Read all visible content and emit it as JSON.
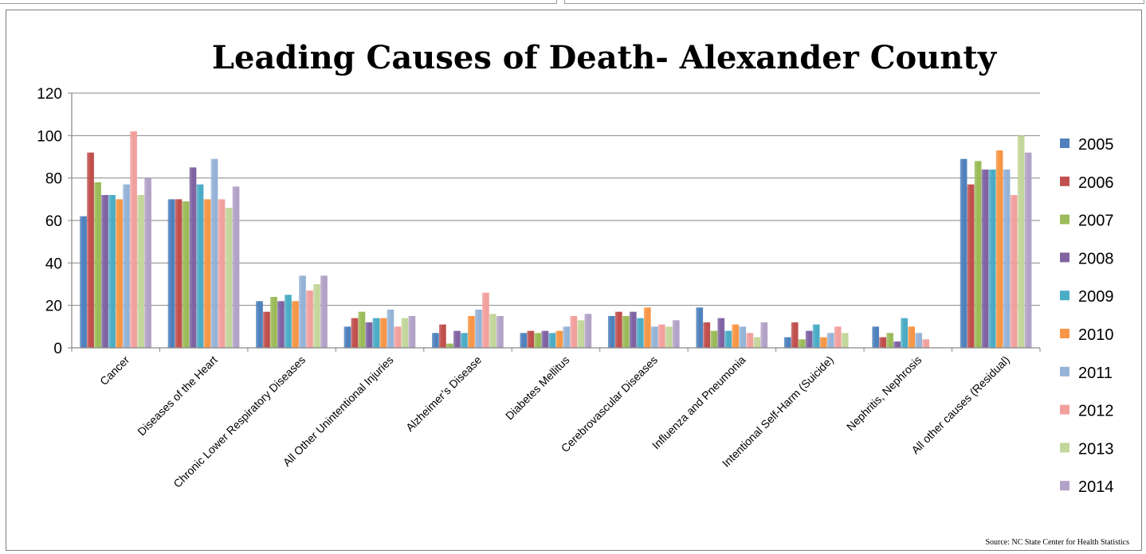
{
  "chart_data": {
    "type": "bar",
    "title": "Leading Causes of Death- Alexander County",
    "xlabel": "",
    "ylabel": "",
    "ylim": [
      0,
      120
    ],
    "yticks": [
      0,
      20,
      40,
      60,
      80,
      100,
      120
    ],
    "grid": true,
    "legend_position": "right",
    "source": "Source: NC State Center for Health Statistics",
    "categories": [
      "Cancer",
      "Diseases of the Heart",
      "Chronic Lower Respiratory Diseases",
      "All Other Unintentional Injuries",
      "Alzheimer’s Disease",
      "Diabetes Mellitus",
      "Cerebrovascular Diseases",
      "Influenza and Pneumonia",
      "Intentional Self-Harm (Suicide)",
      "Nephritis, Nephrosis",
      "All other causes (Residual)"
    ],
    "series": [
      {
        "name": "2005",
        "color": "#4f81bd",
        "values": [
          62,
          70,
          22,
          10,
          7,
          7,
          15,
          19,
          5,
          10,
          89
        ]
      },
      {
        "name": "2006",
        "color": "#c0504d",
        "values": [
          92,
          70,
          17,
          14,
          11,
          8,
          17,
          12,
          12,
          5,
          77
        ]
      },
      {
        "name": "2007",
        "color": "#9bbb59",
        "values": [
          78,
          69,
          24,
          17,
          2,
          7,
          15,
          8,
          4,
          7,
          88
        ]
      },
      {
        "name": "2008",
        "color": "#8064a2",
        "values": [
          72,
          85,
          22,
          12,
          8,
          8,
          17,
          14,
          8,
          3,
          84
        ]
      },
      {
        "name": "2009",
        "color": "#4bacc6",
        "values": [
          72,
          77,
          25,
          14,
          7,
          7,
          14,
          8,
          11,
          14,
          84
        ]
      },
      {
        "name": "2010",
        "color": "#f79646",
        "values": [
          70,
          70,
          22,
          14,
          15,
          8,
          19,
          11,
          5,
          10,
          93
        ]
      },
      {
        "name": "2011",
        "color": "#95b3d7",
        "values": [
          77,
          89,
          34,
          18,
          18,
          10,
          10,
          10,
          7,
          7,
          84
        ]
      },
      {
        "name": "2012",
        "color": "#f2a09e",
        "values": [
          102,
          70,
          27,
          10,
          26,
          15,
          11,
          7,
          10,
          4,
          72
        ]
      },
      {
        "name": "2013",
        "color": "#c3d69b",
        "values": [
          72,
          66,
          30,
          14,
          16,
          13,
          10,
          5,
          7,
          0,
          100
        ]
      },
      {
        "name": "2014",
        "color": "#b3a2c7",
        "values": [
          80,
          76,
          34,
          15,
          15,
          16,
          13,
          12,
          0,
          0,
          92
        ]
      }
    ]
  }
}
